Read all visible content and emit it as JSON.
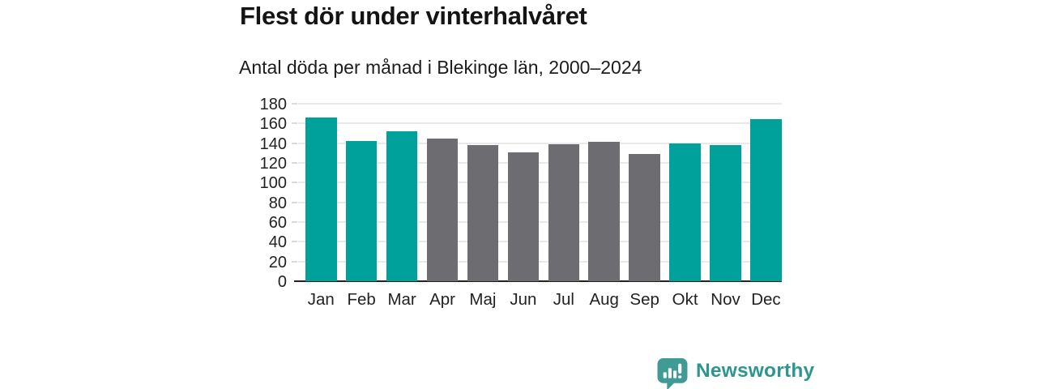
{
  "chart_data": {
    "type": "bar",
    "title": "Flest dör under vinterhalvåret",
    "subtitle": "Antal döda per månad i Blekinge län, 2000–2024",
    "categories": [
      "Jan",
      "Feb",
      "Mar",
      "Apr",
      "Maj",
      "Jun",
      "Jul",
      "Aug",
      "Sep",
      "Okt",
      "Nov",
      "Dec"
    ],
    "values": [
      166,
      142,
      152,
      145,
      138,
      131,
      139,
      141,
      129,
      140,
      138,
      164
    ],
    "bar_color_keys": [
      "teal",
      "teal",
      "teal",
      "gray",
      "gray",
      "gray",
      "gray",
      "gray",
      "gray",
      "teal",
      "teal",
      "teal"
    ],
    "palette": {
      "teal": "#00a19a",
      "gray": "#6c6c71"
    },
    "xlabel": "",
    "ylabel": "",
    "ylim": [
      0,
      180
    ],
    "ytick_step": 20,
    "yticks": [
      0,
      20,
      40,
      60,
      80,
      100,
      120,
      140,
      160,
      180
    ],
    "grid": true,
    "legend_position": "none",
    "gridline_color": "#e9e9e9",
    "axis_line_color": "#222222"
  },
  "footer": {
    "brand": "Newsworthy",
    "brand_color": "#2f968e",
    "logo_icon_color": "#3f9b94"
  }
}
